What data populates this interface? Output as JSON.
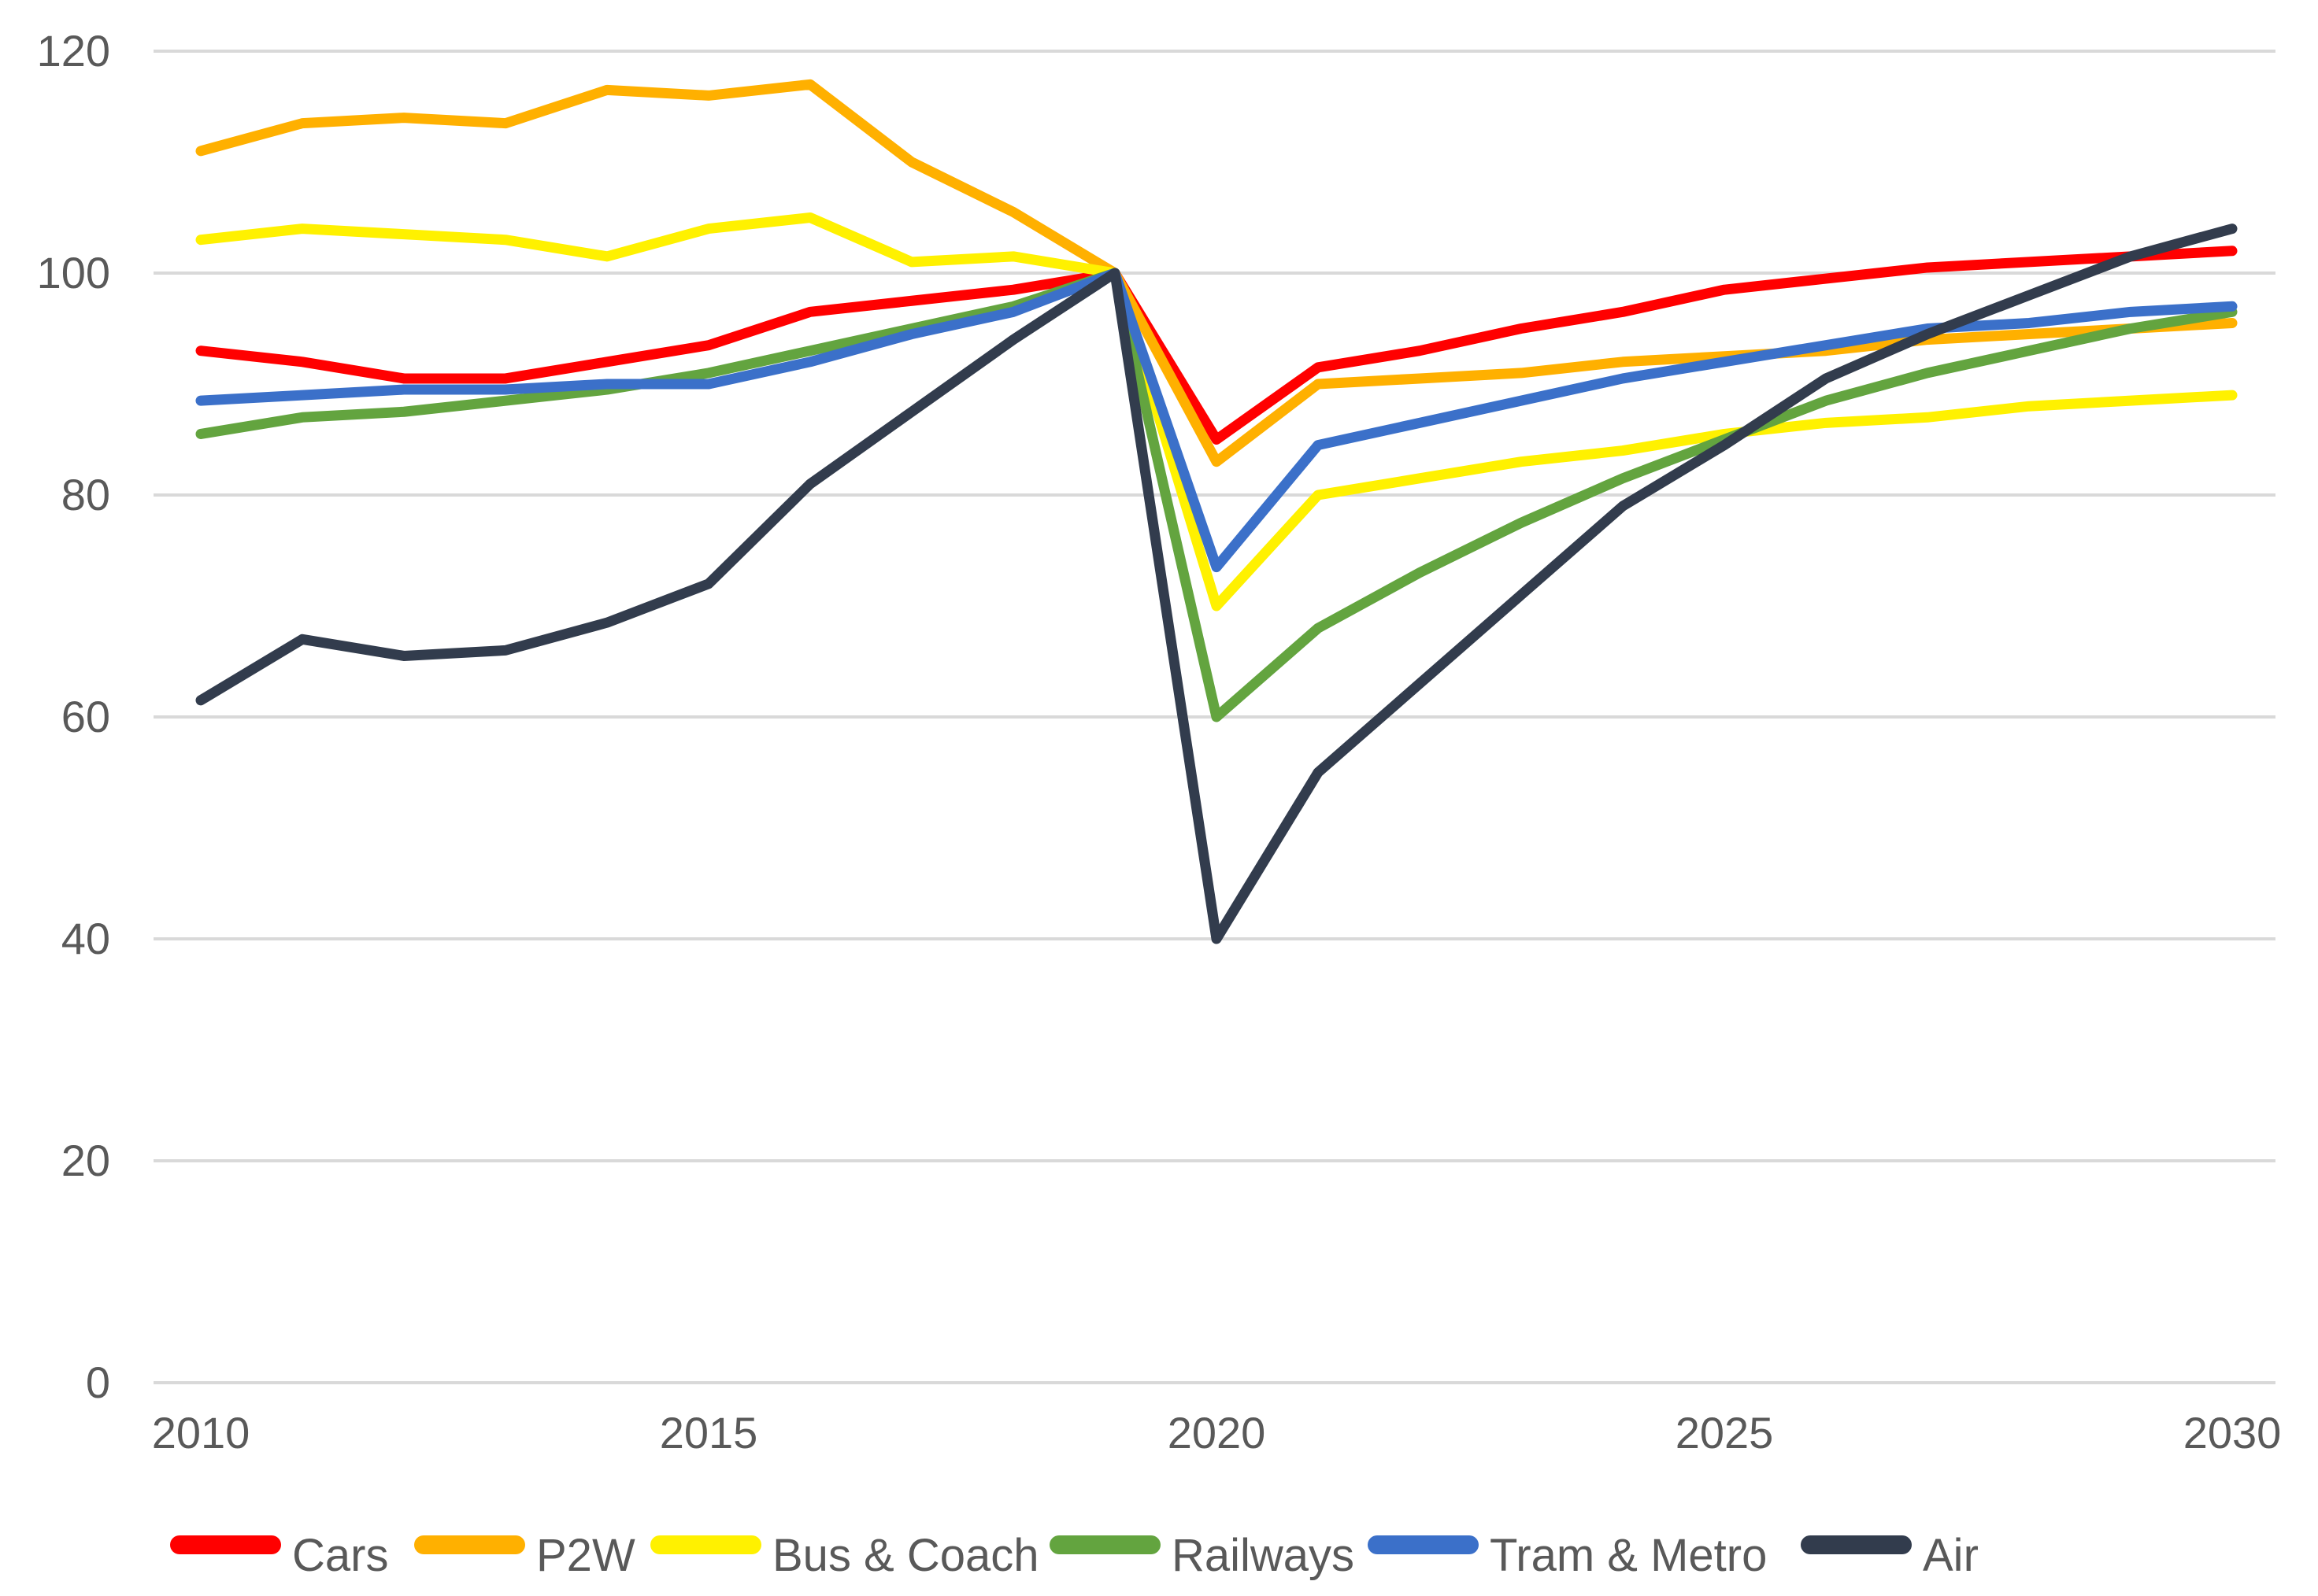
{
  "chart_data": {
    "type": "line",
    "title": "",
    "xlabel": "",
    "ylabel": "",
    "x": [
      2010,
      2011,
      2012,
      2013,
      2014,
      2015,
      2016,
      2017,
      2018,
      2019,
      2020,
      2021,
      2022,
      2023,
      2024,
      2025,
      2026,
      2027,
      2028,
      2029,
      2030
    ],
    "xticks": [
      2010,
      2015,
      2020,
      2025,
      2030
    ],
    "yticks": [
      0,
      20,
      40,
      60,
      80,
      100,
      120
    ],
    "ylim": [
      0,
      120
    ],
    "grid": "horizontal",
    "gridline_color": "#D9D9D9",
    "tick_text_color": "#595959",
    "legend_position": "bottom-left",
    "series": [
      {
        "name": "Cars",
        "color": "#FF0000",
        "values": [
          93,
          92,
          90.5,
          90.5,
          92,
          93.5,
          96.5,
          97.5,
          98.5,
          100,
          85,
          91.5,
          93,
          95,
          96.5,
          98.5,
          99.5,
          100.5,
          101,
          101.5,
          102
        ]
      },
      {
        "name": "P2W",
        "color": "#FFB000",
        "values": [
          111,
          113.5,
          114,
          113.5,
          116.5,
          116,
          117,
          110,
          105.5,
          100,
          83,
          90,
          90.5,
          91,
          92,
          92.5,
          93,
          94,
          94.5,
          95,
          95.5
        ]
      },
      {
        "name": "Bus & Coach",
        "color": "#FFF100",
        "values": [
          103,
          104,
          103.5,
          103,
          101.5,
          104,
          105,
          101,
          101.5,
          100,
          70,
          80,
          81.5,
          83,
          84,
          85.5,
          86.5,
          87,
          88,
          88.5,
          89
        ]
      },
      {
        "name": "Railways",
        "color": "#63A43F",
        "values": [
          85.5,
          87,
          87.5,
          88.5,
          89.5,
          91,
          93,
          95,
          97,
          100,
          60,
          68,
          73,
          77.5,
          81.5,
          85,
          88.5,
          91,
          93,
          95,
          96.5
        ]
      },
      {
        "name": "Tram & Metro",
        "color": "#3B70C9",
        "values": [
          88.5,
          89,
          89.5,
          89.5,
          90,
          90,
          92,
          94.5,
          96.5,
          100,
          73.5,
          84.5,
          86.5,
          88.5,
          90.5,
          92,
          93.5,
          95,
          95.5,
          96.5,
          97
        ]
      },
      {
        "name": "Air",
        "color": "#323C4D",
        "values": [
          61.5,
          67,
          65.5,
          66,
          68.5,
          72,
          81,
          87.5,
          94,
          100,
          40,
          55,
          63,
          71,
          79,
          84.5,
          90.5,
          94.5,
          98,
          101.5,
          104
        ]
      }
    ]
  }
}
